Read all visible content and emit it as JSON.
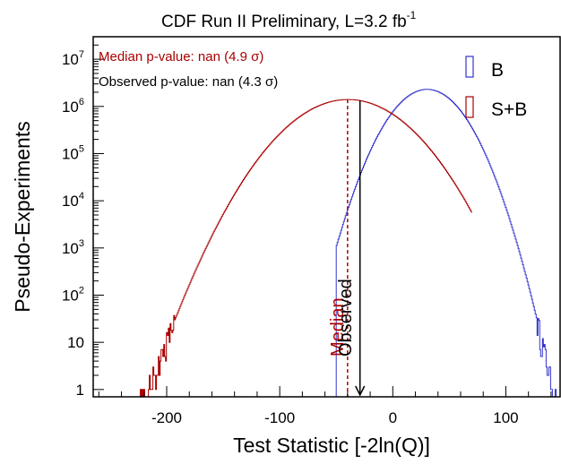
{
  "chart_data": {
    "type": "line",
    "title": "CDF Run II Preliminary,  L=3.2 fb",
    "title_superscript": "-1",
    "xlabel": "Test Statistic [-2ln(Q)]",
    "ylabel": "Pseudo-Experiments",
    "xlim": [
      -265,
      148
    ],
    "ylim": [
      0.7,
      30000000
    ],
    "y_scale": "log",
    "grid": false,
    "x_ticks": [
      -200,
      -100,
      0,
      100
    ],
    "x_tick_labels": [
      "-200",
      "-100",
      "0",
      "100"
    ],
    "y_ticks": [
      1,
      10,
      100,
      1000,
      10000,
      100000,
      1000000,
      10000000
    ],
    "y_tick_labels": [
      {
        "base": "1",
        "exp": ""
      },
      {
        "base": "10",
        "exp": ""
      },
      {
        "base": "10",
        "exp": "2"
      },
      {
        "base": "10",
        "exp": "3"
      },
      {
        "base": "10",
        "exp": "4"
      },
      {
        "base": "10",
        "exp": "5"
      },
      {
        "base": "10",
        "exp": "6"
      },
      {
        "base": "10",
        "exp": "7"
      }
    ],
    "legend_position": "top-right",
    "series": [
      {
        "name": "B",
        "color": "#3333cc",
        "peak_x": 30,
        "peak_y": 2300000,
        "sigma": 20.5,
        "range": [
          -50,
          148
        ]
      },
      {
        "name": "S+B",
        "color": "#aa0000",
        "peak_x": -40,
        "peak_y": 1400000,
        "sigma": 33,
        "range": [
          -245,
          70
        ]
      }
    ],
    "annotations": {
      "median_text": "Median p-value: nan (4.9 σ)",
      "median_color": "#aa0000",
      "observed_text": "Observed p-value: nan (4.3 σ)",
      "observed_color": "#000000",
      "median_label": "Median",
      "observed_label": "Observed",
      "median_x": -40,
      "observed_x": -29
    }
  }
}
